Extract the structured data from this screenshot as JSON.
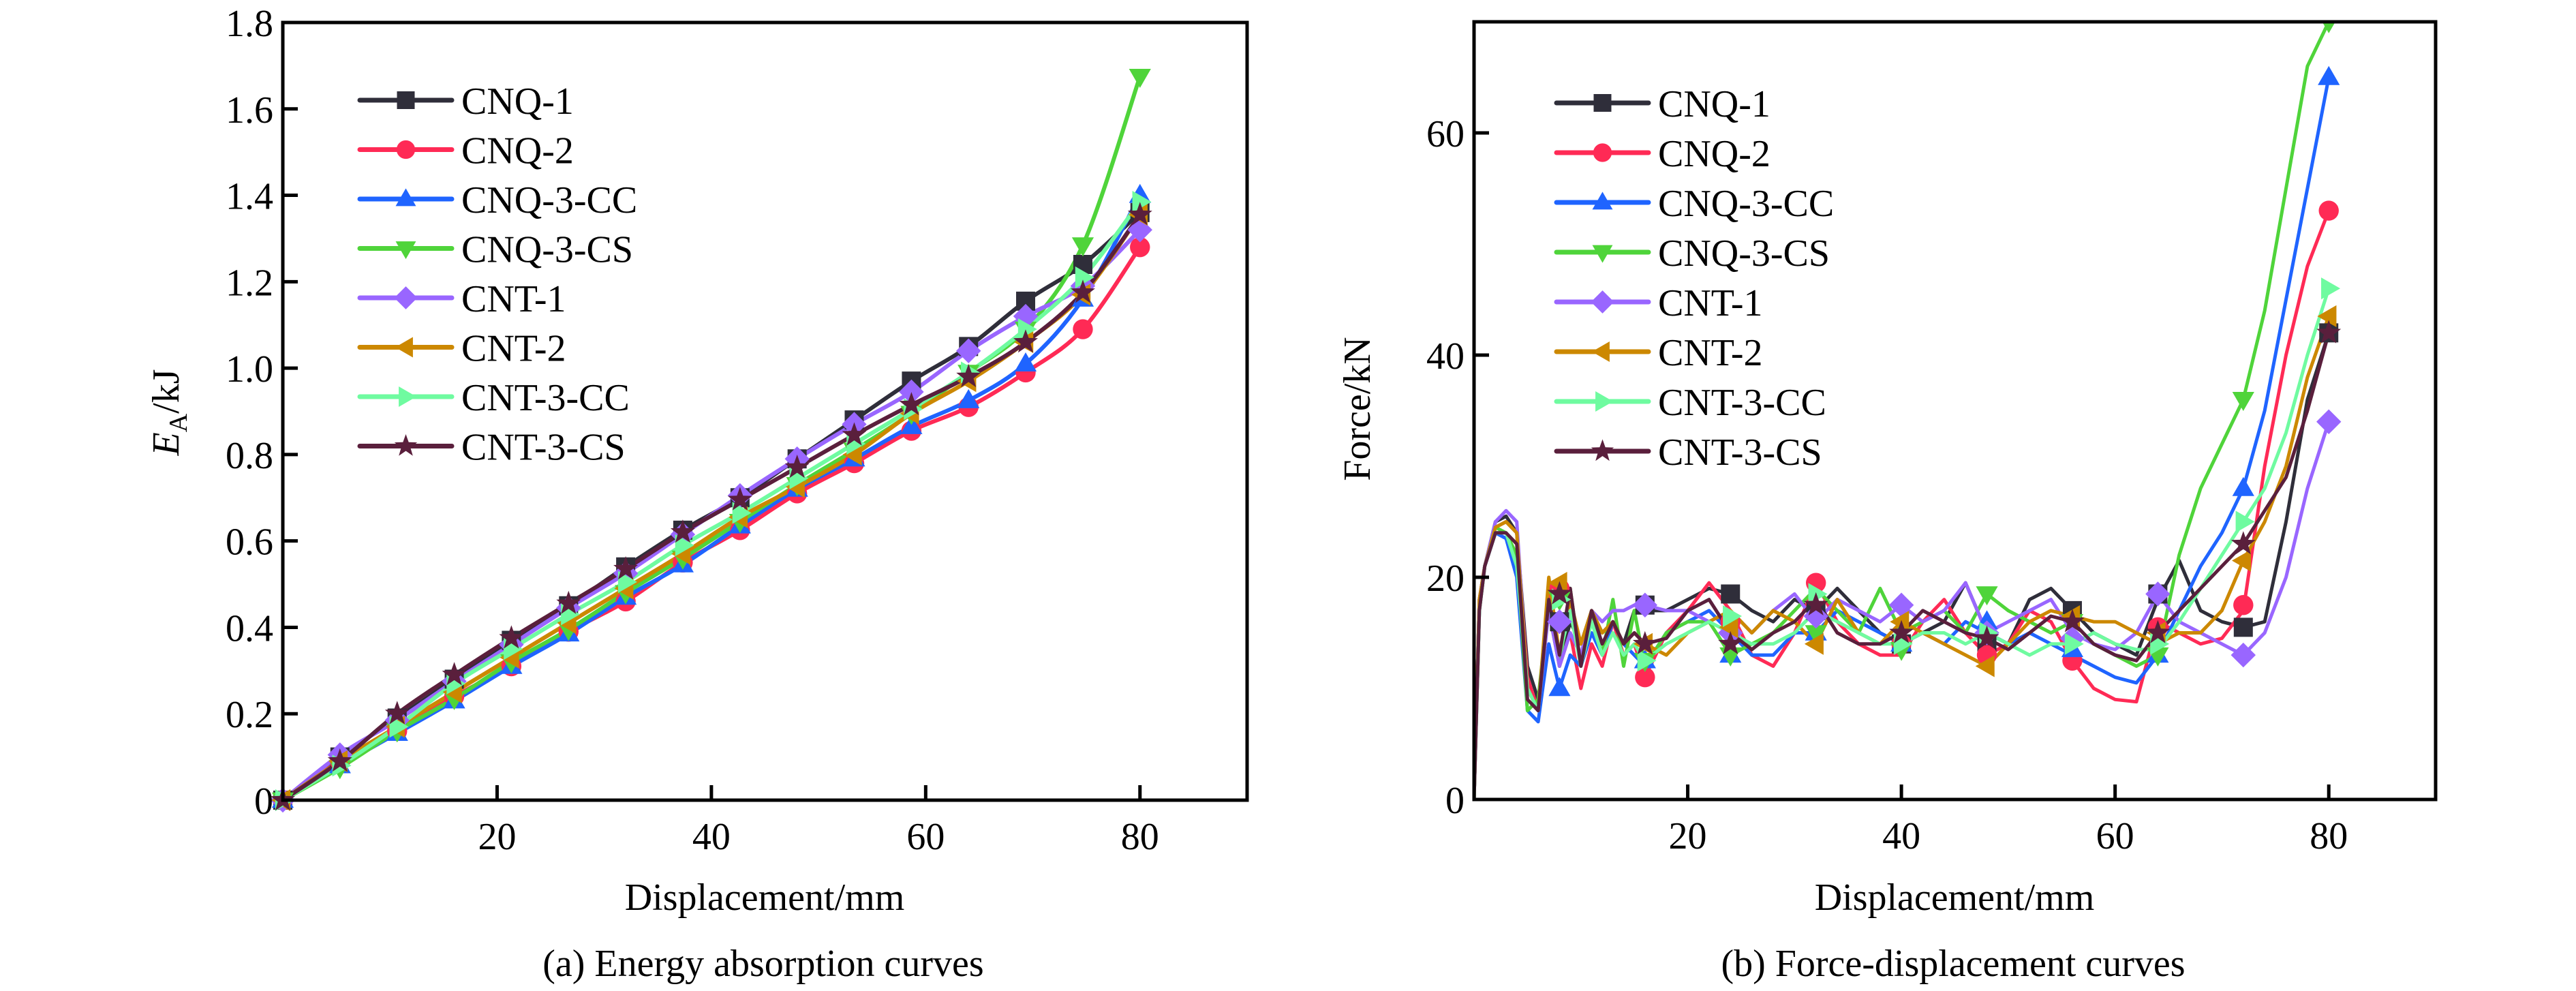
{
  "chart_data": [
    {
      "id": "a",
      "type": "line",
      "title": "",
      "caption": "(a) Energy absorption curves",
      "xlabel": "Displacement/mm",
      "ylabel_main": "E",
      "ylabel_sub": "A",
      "ylabel_unit": "/kJ",
      "xlim": [
        0,
        90
      ],
      "ylim": [
        0,
        1.8
      ],
      "xticks": [
        20,
        40,
        60,
        80
      ],
      "yticks": [
        0,
        0.2,
        0.4,
        0.6,
        0.8,
        1.0,
        1.2,
        1.4,
        1.6,
        1.8
      ],
      "ytick_labels": [
        "0",
        "0.2",
        "0.4",
        "0.6",
        "0.8",
        "1.0",
        "1.2",
        "1.4",
        "1.6",
        "1.8"
      ],
      "grid": false,
      "legend_position": "top-left",
      "x": [
        0,
        5.33,
        10.67,
        16,
        21.33,
        26.67,
        32,
        37.33,
        42.67,
        48,
        53.33,
        58.67,
        64,
        69.33,
        74.67,
        80
      ],
      "series": [
        {
          "name": "CNQ-1",
          "color": "#2f2e3a",
          "marker": "square",
          "values": [
            0,
            0.1,
            0.19,
            0.28,
            0.37,
            0.45,
            0.54,
            0.625,
            0.7,
            0.79,
            0.88,
            0.97,
            1.05,
            1.155,
            1.24,
            1.36
          ]
        },
        {
          "name": "CNQ-2",
          "color": "#ff2a55",
          "marker": "circle",
          "values": [
            0,
            0.09,
            0.16,
            0.24,
            0.31,
            0.39,
            0.46,
            0.55,
            0.625,
            0.71,
            0.78,
            0.855,
            0.91,
            0.99,
            1.09,
            1.28
          ]
        },
        {
          "name": "CNQ-3-CC",
          "color": "#1f64ff",
          "marker": "triangle-up",
          "values": [
            0,
            0.08,
            0.155,
            0.23,
            0.31,
            0.385,
            0.47,
            0.545,
            0.635,
            0.72,
            0.79,
            0.865,
            0.925,
            1.01,
            1.16,
            1.4
          ]
        },
        {
          "name": "CNQ-3-CS",
          "color": "#4fd43a",
          "marker": "triangle-down",
          "values": [
            0,
            0.075,
            0.16,
            0.235,
            0.32,
            0.395,
            0.48,
            0.56,
            0.645,
            0.73,
            0.81,
            0.895,
            0.99,
            1.09,
            1.285,
            1.675
          ]
        },
        {
          "name": "CNT-1",
          "color": "#9966ff",
          "marker": "diamond",
          "values": [
            0,
            0.105,
            0.185,
            0.275,
            0.36,
            0.445,
            0.525,
            0.615,
            0.705,
            0.79,
            0.87,
            0.945,
            1.04,
            1.12,
            1.19,
            1.32
          ]
        },
        {
          "name": "CNT-2",
          "color": "#cc8800",
          "marker": "triangle-left",
          "values": [
            0,
            0.09,
            0.17,
            0.25,
            0.33,
            0.41,
            0.49,
            0.57,
            0.655,
            0.725,
            0.8,
            0.895,
            0.97,
            1.06,
            1.17,
            1.355
          ]
        },
        {
          "name": "CNT-3-CC",
          "color": "#6ffba0",
          "marker": "triangle-right",
          "values": [
            0,
            0.08,
            0.17,
            0.27,
            0.35,
            0.43,
            0.505,
            0.59,
            0.665,
            0.745,
            0.825,
            0.905,
            0.99,
            1.09,
            1.21,
            1.385
          ]
        },
        {
          "name": "CNT-3-CS",
          "color": "#5a1f3c",
          "marker": "star",
          "values": [
            0,
            0.09,
            0.2,
            0.29,
            0.375,
            0.455,
            0.535,
            0.62,
            0.695,
            0.77,
            0.845,
            0.915,
            0.98,
            1.06,
            1.175,
            1.355
          ]
        }
      ]
    },
    {
      "id": "b",
      "type": "line",
      "title": "",
      "caption": "(b) Force-displacement curves",
      "xlabel": "Displacement/mm",
      "ylabel": "Force/kN",
      "xlim": [
        0,
        90
      ],
      "ylim": [
        0,
        70
      ],
      "xticks": [
        20,
        40,
        60,
        80
      ],
      "yticks": [
        0,
        20,
        40,
        60
      ],
      "ytick_labels": [
        "0",
        "20",
        "40",
        "60"
      ],
      "grid": false,
      "legend_position": "top-left",
      "x": [
        0,
        0.5,
        1,
        2,
        3,
        4,
        5,
        6,
        7,
        8,
        9,
        10,
        11,
        12,
        13,
        14,
        15,
        16,
        18,
        20,
        22,
        24,
        26,
        28,
        30,
        32,
        34,
        36,
        38,
        40,
        42,
        44,
        46,
        48,
        50,
        52,
        54,
        56,
        58,
        60,
        62,
        64,
        66,
        68,
        70,
        72,
        74,
        76,
        78,
        80
      ],
      "marker_x": [
        8,
        16,
        24,
        32,
        40,
        48,
        56,
        64,
        72,
        80
      ],
      "series": [
        {
          "name": "CNQ-1",
          "color": "#2f2e3a",
          "marker": "square",
          "values": [
            0,
            18,
            21,
            25,
            25.5,
            24,
            12,
            9,
            17,
            12,
            16,
            14,
            17,
            15,
            16,
            14,
            17,
            17,
            17,
            18,
            19,
            18.5,
            17,
            16,
            18,
            17,
            19,
            17,
            15,
            14,
            15,
            16,
            19.5,
            15,
            14,
            18,
            19,
            17,
            15,
            14,
            13,
            18,
            21.5,
            17,
            16,
            15.5,
            16,
            25,
            36,
            42
          ],
          "marker_values": [
            16,
            17.5,
            18.5,
            17,
            14,
            14,
            17,
            18.5,
            15.5,
            42
          ]
        },
        {
          "name": "CNQ-2",
          "color": "#ff2a55",
          "marker": "circle",
          "values": [
            0,
            18,
            21,
            24.5,
            25,
            24,
            11,
            8,
            19,
            12,
            15,
            10,
            14,
            12,
            16,
            13,
            14,
            11,
            15,
            17,
            19.5,
            17,
            13,
            12,
            15,
            19.5,
            16,
            14,
            13,
            13,
            16,
            18,
            15,
            13,
            14,
            17,
            16,
            12.5,
            10,
            9,
            8.8,
            16,
            15,
            14,
            14.5,
            17,
            30,
            40,
            48,
            53
          ],
          "marker_values": [
            19,
            11,
            16,
            19.5,
            14,
            13,
            12.5,
            15.5,
            17.5,
            53
          ]
        },
        {
          "name": "CNQ-3-CC",
          "color": "#1f64ff",
          "marker": "triangle-up",
          "values": [
            0,
            17,
            21,
            24,
            23.5,
            20,
            8,
            7,
            14,
            10,
            13,
            12,
            15,
            13,
            16,
            14,
            13,
            12,
            15,
            16,
            17,
            15,
            13,
            13,
            15,
            15,
            17,
            16,
            15,
            14,
            15,
            14,
            16,
            15,
            14,
            15,
            14,
            13,
            12,
            11,
            10.5,
            13,
            17,
            21,
            24,
            28,
            35,
            45,
            55,
            65
          ],
          "marker_values": [
            10,
            12.5,
            13,
            15,
            14,
            16,
            13.5,
            13,
            28,
            65
          ]
        },
        {
          "name": "CNQ-3-CS",
          "color": "#4fd43a",
          "marker": "triangle-down",
          "values": [
            0,
            17,
            21,
            24.5,
            24,
            22,
            8,
            9,
            18,
            12,
            19,
            12,
            17,
            13,
            18,
            12,
            17,
            12,
            15,
            16,
            16,
            13,
            14,
            15,
            17,
            19,
            17,
            15,
            19,
            15,
            16,
            17,
            15,
            18.5,
            17,
            16,
            15,
            16,
            14,
            13,
            12,
            13,
            22,
            28,
            32,
            36,
            44,
            55,
            66,
            70
          ],
          "marker_values": [
            18,
            12.5,
            13,
            15,
            13.5,
            18.5,
            16,
            13,
            36,
            70
          ]
        },
        {
          "name": "CNT-1",
          "color": "#9966ff",
          "marker": "diamond",
          "values": [
            0,
            18,
            21,
            25,
            26,
            25,
            10,
            8,
            17,
            12,
            15,
            13,
            17,
            16,
            17,
            17,
            17.5,
            17.5,
            17,
            17,
            16,
            17,
            15,
            17,
            18.5,
            16,
            18,
            17,
            16,
            17.5,
            16,
            17,
            19.5,
            15,
            16,
            17,
            18,
            15,
            14,
            13.5,
            15,
            18.5,
            16,
            15,
            14,
            13,
            15,
            20,
            28,
            34
          ],
          "marker_values": [
            16,
            17.5,
            15,
            16.5,
            17.5,
            15,
            14.5,
            18.5,
            13,
            34
          ]
        },
        {
          "name": "CNT-2",
          "color": "#cc8800",
          "marker": "triangle-left",
          "values": [
            0,
            18,
            21,
            24.5,
            25,
            24,
            10,
            8,
            20,
            13,
            18,
            14,
            17,
            15,
            16,
            14,
            15,
            14,
            13,
            15,
            16,
            17,
            15,
            17,
            16,
            14,
            18,
            15,
            14,
            16,
            15,
            14,
            13,
            12,
            14,
            16,
            17,
            16.5,
            16,
            16,
            15,
            14,
            15,
            15,
            17,
            21.5,
            25,
            30,
            38,
            43.5
          ],
          "marker_values": [
            19.5,
            14,
            15.5,
            14,
            16,
            12,
            16.5,
            15,
            21.5,
            43.5
          ]
        },
        {
          "name": "CNT-3-CC",
          "color": "#6ffba0",
          "marker": "triangle-right",
          "values": [
            0,
            17,
            21,
            24,
            24,
            21,
            10,
            8,
            18,
            13,
            17,
            12,
            16,
            13,
            15,
            13,
            14,
            12.5,
            14,
            15,
            16,
            15,
            14,
            14,
            15,
            17,
            16,
            15,
            14,
            14,
            15,
            15,
            14,
            15,
            14,
            13,
            14,
            14,
            15,
            14,
            13.5,
            13.5,
            16,
            19,
            22,
            25,
            28,
            33,
            40,
            46
          ],
          "marker_values": [
            18,
            12.5,
            16.5,
            18.5,
            14,
            15,
            14,
            14,
            25,
            46
          ]
        },
        {
          "name": "CNT-3-CS",
          "color": "#5a1f3c",
          "marker": "star",
          "values": [
            0,
            17,
            21,
            24,
            24,
            23,
            9,
            8,
            18,
            13,
            19,
            12,
            17,
            14,
            16,
            14,
            15,
            14,
            14.5,
            17,
            18,
            15,
            13.5,
            15,
            16,
            18,
            15,
            14,
            14,
            15,
            17,
            16,
            15,
            14.5,
            13.5,
            15,
            16.5,
            16,
            14,
            13,
            12.5,
            15,
            17,
            19,
            21,
            23,
            26,
            29,
            35,
            42
          ],
          "marker_values": [
            18.5,
            14,
            14,
            17.5,
            15,
            14.5,
            16,
            15,
            23,
            42
          ]
        }
      ]
    }
  ]
}
